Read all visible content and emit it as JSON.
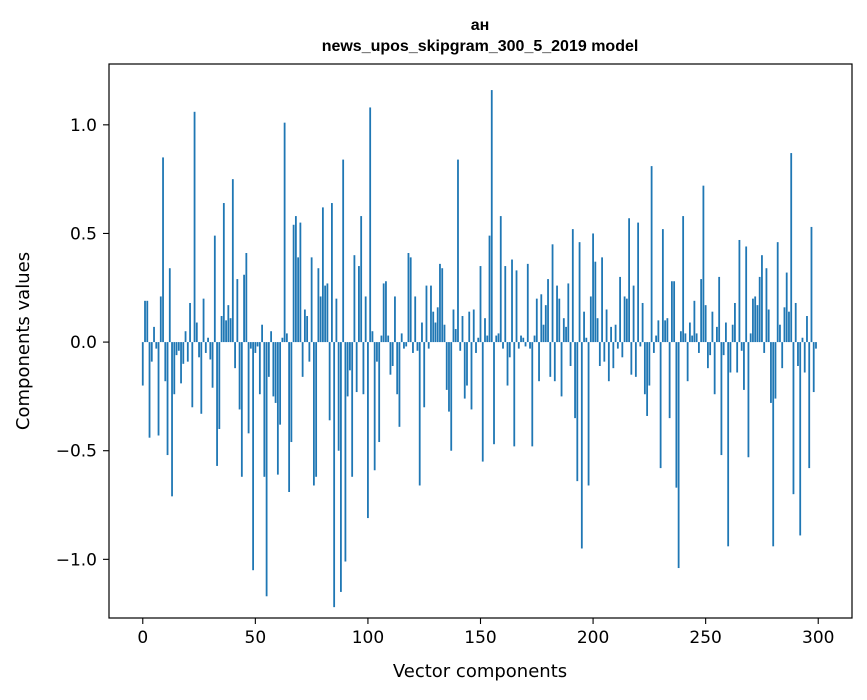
{
  "chart_data": {
    "type": "bar",
    "title_line1": "ан",
    "title_line2": "news_upos_skipgram_300_5_2019 model",
    "xlabel": "Vector components",
    "ylabel": "Components values",
    "xlim": [
      -15,
      315
    ],
    "ylim": [
      -1.27,
      1.28
    ],
    "xticks": [
      {
        "value": 0,
        "label": "0"
      },
      {
        "value": 50,
        "label": "50"
      },
      {
        "value": 100,
        "label": "100"
      },
      {
        "value": 150,
        "label": "150"
      },
      {
        "value": 200,
        "label": "200"
      },
      {
        "value": 250,
        "label": "250"
      },
      {
        "value": 300,
        "label": "300"
      }
    ],
    "yticks": [
      {
        "value": -1.0,
        "label": "−1.0"
      },
      {
        "value": -0.5,
        "label": "−0.5"
      },
      {
        "value": 0.0,
        "label": "0.0"
      },
      {
        "value": 0.5,
        "label": "0.5"
      },
      {
        "value": 1.0,
        "label": "1.0"
      }
    ],
    "bar_color": "#1f77b4",
    "values": [
      -0.2,
      0.19,
      0.19,
      -0.44,
      -0.09,
      0.07,
      -0.03,
      -0.43,
      0.21,
      0.85,
      -0.18,
      -0.52,
      0.34,
      -0.71,
      -0.24,
      -0.06,
      -0.04,
      -0.19,
      -0.1,
      0.05,
      -0.09,
      0.18,
      -0.3,
      1.06,
      0.09,
      -0.07,
      -0.33,
      0.2,
      -0.05,
      0.02,
      -0.08,
      -0.21,
      0.49,
      -0.57,
      -0.4,
      0.12,
      0.64,
      0.1,
      0.17,
      0.11,
      0.75,
      -0.12,
      0.29,
      -0.31,
      -0.62,
      0.31,
      0.41,
      -0.42,
      -0.03,
      -1.05,
      -0.05,
      -0.02,
      -0.24,
      0.08,
      -0.62,
      -1.17,
      -0.16,
      0.05,
      -0.25,
      -0.28,
      -0.61,
      -0.38,
      0.02,
      1.01,
      0.04,
      -0.69,
      -0.46,
      0.54,
      0.58,
      0.39,
      0.55,
      -0.16,
      0.15,
      0.12,
      -0.09,
      0.39,
      -0.66,
      -0.62,
      0.34,
      0.21,
      0.62,
      0.26,
      0.27,
      -0.36,
      0.64,
      -1.22,
      0.2,
      -0.5,
      -1.15,
      0.84,
      -1.01,
      -0.25,
      -0.13,
      -0.62,
      0.4,
      -0.23,
      0.35,
      0.58,
      -0.24,
      0.21,
      -0.81,
      1.08,
      0.05,
      -0.59,
      -0.09,
      -0.46,
      0.03,
      0.27,
      0.28,
      0.03,
      -0.15,
      -0.11,
      0.21,
      -0.24,
      -0.39,
      0.04,
      -0.03,
      -0.02,
      0.41,
      0.39,
      -0.05,
      0.21,
      -0.04,
      -0.66,
      0.09,
      -0.3,
      0.26,
      -0.03,
      0.26,
      0.14,
      0.09,
      0.16,
      0.36,
      0.34,
      0.08,
      -0.22,
      -0.32,
      -0.5,
      0.15,
      0.06,
      0.84,
      -0.04,
      0.12,
      -0.26,
      -0.2,
      0.14,
      -0.31,
      0.15,
      -0.05,
      0.02,
      0.35,
      -0.55,
      0.11,
      0.03,
      0.49,
      1.16,
      -0.47,
      0.03,
      0.04,
      0.58,
      -0.03,
      0.35,
      -0.2,
      -0.07,
      0.38,
      -0.48,
      0.33,
      -0.03,
      0.03,
      0.02,
      -0.02,
      0.36,
      -0.03,
      -0.48,
      0.03,
      0.2,
      -0.18,
      0.22,
      0.08,
      0.17,
      0.29,
      -0.16,
      0.45,
      -0.18,
      0.26,
      0.2,
      -0.25,
      0.11,
      0.07,
      0.27,
      -0.11,
      0.52,
      -0.35,
      -0.64,
      0.46,
      -0.95,
      0.14,
      0.02,
      -0.66,
      0.21,
      0.5,
      0.37,
      0.11,
      -0.11,
      0.39,
      -0.09,
      0.15,
      -0.18,
      0.07,
      -0.12,
      0.08,
      -0.03,
      0.3,
      -0.07,
      0.21,
      0.2,
      0.57,
      -0.15,
      0.26,
      -0.16,
      0.55,
      -0.02,
      0.18,
      -0.24,
      -0.34,
      -0.2,
      0.81,
      -0.05,
      0.03,
      0.1,
      -0.58,
      0.52,
      0.1,
      0.11,
      -0.35,
      0.28,
      0.28,
      -0.67,
      -1.04,
      0.05,
      0.58,
      0.04,
      -0.18,
      0.09,
      0.03,
      0.19,
      0.04,
      -0.05,
      0.29,
      0.72,
      0.17,
      -0.12,
      -0.06,
      0.14,
      -0.24,
      0.07,
      0.3,
      -0.52,
      -0.06,
      0.09,
      -0.94,
      -0.14,
      0.08,
      0.18,
      -0.14,
      0.47,
      -0.04,
      -0.22,
      0.44,
      -0.53,
      0.04,
      0.2,
      0.21,
      0.17,
      0.3,
      0.4,
      -0.05,
      0.34,
      0.15,
      -0.28,
      -0.94,
      -0.26,
      0.46,
      0.08,
      -0.12,
      0.16,
      0.32,
      0.14,
      0.87,
      -0.7,
      0.18,
      -0.11,
      -0.89,
      0.02,
      -0.14,
      0.12,
      -0.58,
      0.53,
      -0.23,
      -0.03
    ]
  }
}
